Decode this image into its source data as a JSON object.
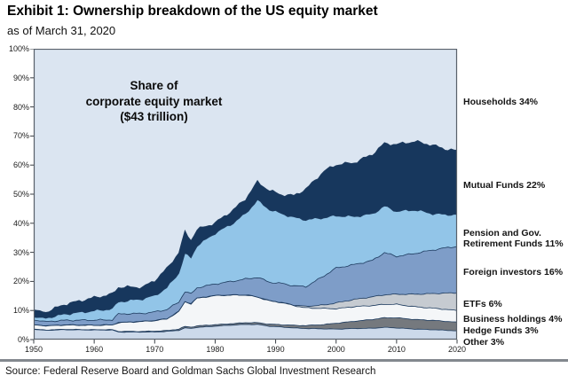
{
  "header": {
    "title": "Exhibit 1: Ownership breakdown of the US equity market",
    "subtitle": "as of March 31, 2020"
  },
  "annotation": {
    "line1": "Share of",
    "line2": "corporate equity market",
    "line3": "($43 trillion)"
  },
  "footer": {
    "source": "Source: Federal Reserve Board and Goldman Sachs Global Investment Research"
  },
  "chart_data": {
    "type": "area",
    "stacked": true,
    "unit": "percent of corporate equity market",
    "ylim": [
      0,
      100
    ],
    "grid": false,
    "legend_position": "right",
    "plot_background": "#dbe5f1",
    "boundary_color": "#1c3a5e",
    "axis_color": "#58606a",
    "x_ticks": [
      1950,
      1960,
      1970,
      1980,
      1990,
      2000,
      2010,
      2020
    ],
    "y_ticks": [
      "0%",
      "10%",
      "20%",
      "30%",
      "40%",
      "50%",
      "60%",
      "70%",
      "80%",
      "90%",
      "100%"
    ],
    "x": [
      1950,
      1952,
      1955,
      1960,
      1963,
      1964,
      1968,
      1970,
      1972,
      1974,
      1975,
      1976,
      1977,
      1980,
      1983,
      1985,
      1987,
      1989,
      1991,
      1993,
      1995,
      1998,
      2000,
      2003,
      2006,
      2008,
      2010,
      2013,
      2016,
      2018,
      2020
    ],
    "series": [
      {
        "name": "other",
        "label": "Other 3%",
        "color": "#ccd9ea",
        "values": [
          3.5,
          3.2,
          3.4,
          3.3,
          3.3,
          2.6,
          2.6,
          2.6,
          2.8,
          3.2,
          4.0,
          3.8,
          4.2,
          4.6,
          5.0,
          5.2,
          5.2,
          4.6,
          4.3,
          4.0,
          3.8,
          3.7,
          3.6,
          3.8,
          3.9,
          4.2,
          4.0,
          3.6,
          3.4,
          3.2,
          3.0
        ]
      },
      {
        "name": "hedge-funds",
        "label": "Hedge Funds 3%",
        "color": "#75797e",
        "values": [
          0.1,
          0.1,
          0.1,
          0.1,
          0.1,
          0.2,
          0.2,
          0.3,
          0.3,
          0.4,
          0.5,
          0.5,
          0.5,
          0.5,
          0.5,
          0.6,
          0.6,
          0.7,
          0.8,
          0.9,
          1.0,
          1.5,
          2.0,
          2.5,
          3.0,
          3.3,
          3.5,
          3.3,
          3.2,
          3.1,
          3.0
        ]
      },
      {
        "name": "business-holdings",
        "label": "Business holdings 4%",
        "color": "#f4f6f8",
        "values": [
          1.5,
          1.4,
          1.5,
          1.5,
          1.6,
          3.0,
          3.4,
          3.6,
          4.0,
          6.0,
          8.5,
          8.0,
          9.5,
          10.0,
          9.8,
          9.5,
          8.8,
          8.0,
          7.6,
          6.8,
          6.1,
          5.5,
          5.0,
          5.0,
          4.8,
          4.6,
          4.6,
          4.4,
          4.2,
          4.1,
          4.0
        ]
      },
      {
        "name": "etfs",
        "label": "ETFs 6%",
        "color": "#c6cbd1",
        "values": [
          0,
          0,
          0,
          0,
          0,
          0,
          0,
          0,
          0,
          0,
          0,
          0,
          0,
          0,
          0,
          0,
          0,
          0,
          0,
          0.2,
          0.5,
          1.2,
          2.0,
          2.5,
          3.0,
          3.3,
          3.5,
          4.3,
          5.0,
          5.6,
          6.0
        ]
      },
      {
        "name": "foreign-investors",
        "label": "Foreign investors 16%",
        "color": "#7e9dc8",
        "values": [
          1.6,
          1.5,
          1.6,
          1.8,
          1.8,
          3.0,
          2.8,
          3.0,
          3.2,
          3.3,
          3.5,
          3.4,
          3.6,
          4.0,
          4.8,
          5.5,
          6.8,
          6.4,
          6.6,
          6.6,
          6.8,
          10.0,
          12.0,
          12.0,
          12.5,
          14.5,
          13.0,
          14.0,
          15.0,
          15.5,
          16.0
        ]
      },
      {
        "name": "pension-funds",
        "label": "Pension and Gov.\nRetirement Funds 11%",
        "color": "#92c5e8",
        "values": [
          1.0,
          1.2,
          2.1,
          3.2,
          3.8,
          4.2,
          5.0,
          5.6,
          7.5,
          10.0,
          13.0,
          12.5,
          14.5,
          17.5,
          20.0,
          22.5,
          26.5,
          25.0,
          24.0,
          23.5,
          23.0,
          20.0,
          18.0,
          16.5,
          16.0,
          16.0,
          15.5,
          15.0,
          12.5,
          11.5,
          11.0
        ]
      },
      {
        "name": "mutual-funds",
        "label": "Mutual Funds 22%",
        "color": "#17375d",
        "values": [
          2.5,
          2.0,
          3.3,
          4.5,
          5.0,
          5.0,
          4.0,
          5.2,
          6.5,
          7.0,
          7.5,
          6.0,
          5.5,
          3.5,
          4.5,
          5.0,
          6.3,
          6.5,
          6.5,
          7.5,
          10.5,
          16.0,
          17.5,
          18.5,
          20.5,
          21.5,
          23.0,
          23.5,
          23.5,
          22.5,
          22.0
        ]
      }
    ],
    "top_series": {
      "name": "households",
      "label": "Households 34%",
      "color": "#dbe5f1",
      "values": [
        89.8,
        90.6,
        88.0,
        85.6,
        84.4,
        82.0,
        82.0,
        79.7,
        75.7,
        70.1,
        63.0,
        65.8,
        62.2,
        59.9,
        55.4,
        51.7,
        45.8,
        48.8,
        50.2,
        50.5,
        48.3,
        42.1,
        39.9,
        39.2,
        36.3,
        32.6,
        32.9,
        31.9,
        33.2,
        34.5,
        34.0
      ]
    }
  }
}
